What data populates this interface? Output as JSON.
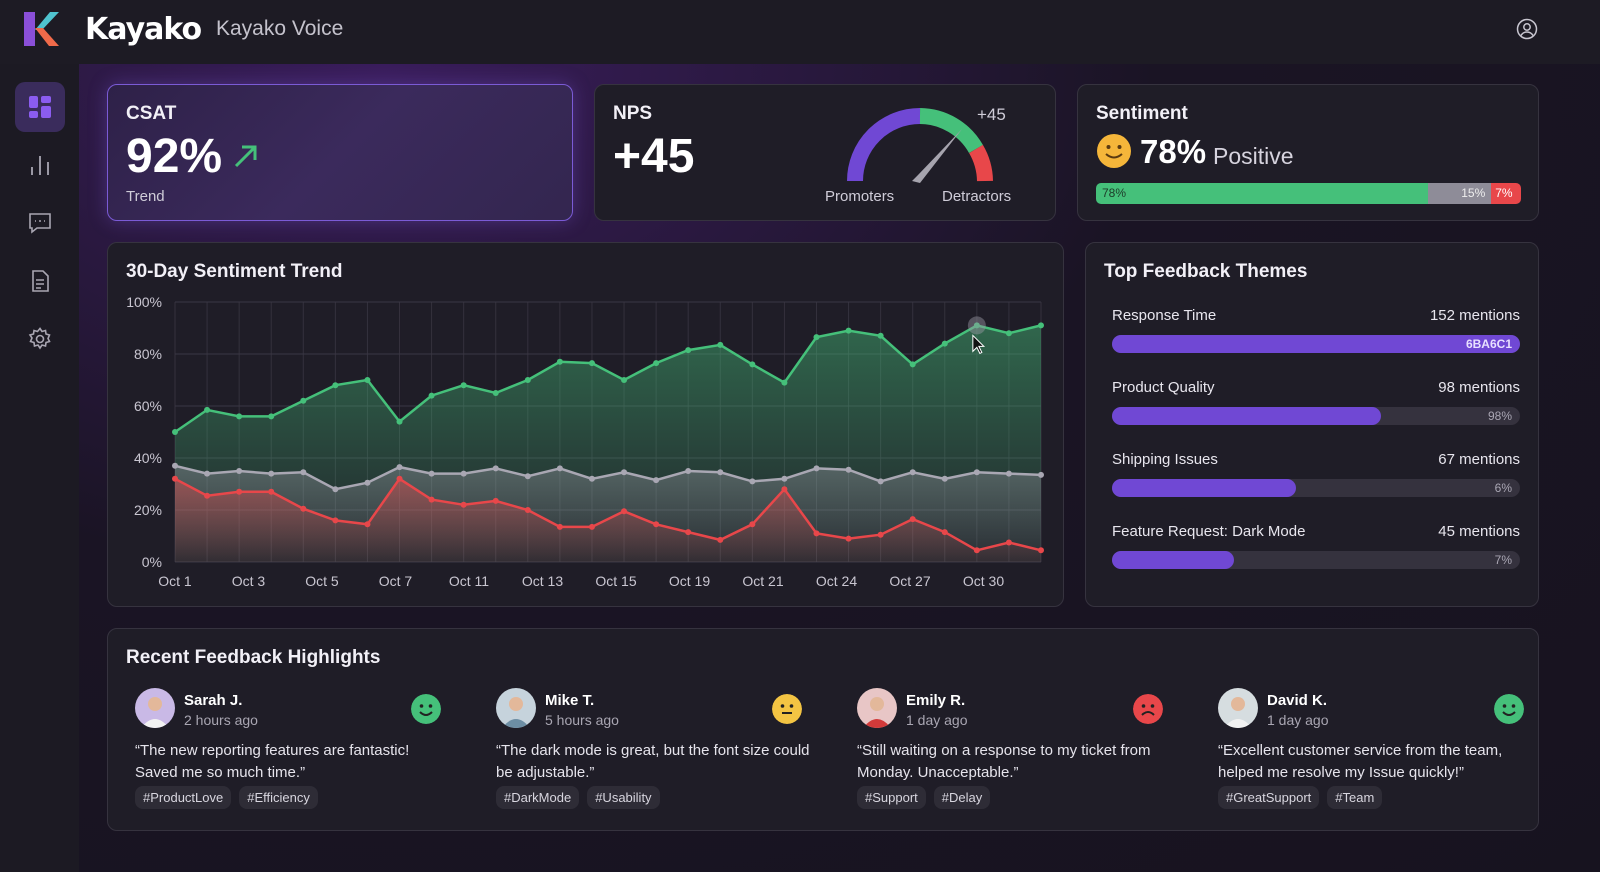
{
  "header": {
    "brand": "Kayako",
    "product": "Kayako Voice"
  },
  "sidebar": {
    "items": [
      {
        "icon": "dashboard-icon",
        "active": true
      },
      {
        "icon": "bar-chart-icon"
      },
      {
        "icon": "chat-icon"
      },
      {
        "icon": "document-icon"
      },
      {
        "icon": "gear-icon"
      }
    ]
  },
  "csat": {
    "title": "CSAT",
    "value": "92%",
    "trend_label": "Trend"
  },
  "nps": {
    "title": "NPS",
    "value": "+45",
    "gauge_value": "+45",
    "promoters_label": "Promoters",
    "detractors_label": "Detractors"
  },
  "sentiment": {
    "title": "Sentiment",
    "value": "78%",
    "label": "Positive",
    "positive": 78,
    "neutral": 15,
    "negative": 7,
    "positive_label": "78%",
    "neutral_label": "15%",
    "negative_label": "7%"
  },
  "colors": {
    "accent": "#7048d4",
    "positive": "#45c07a",
    "neutral": "#9a98a4",
    "negative": "#e8474a"
  },
  "chart_data": {
    "type": "area",
    "title": "30-Day Sentiment Trend",
    "ylim": [
      0,
      100
    ],
    "y_ticks": [
      "100%",
      "80%",
      "60%",
      "40%",
      "20%",
      "0%"
    ],
    "x_ticks": [
      "Oct 1",
      "Oct 3",
      "Oct 5",
      "Oct 7",
      "Oct 11",
      "Oct 13",
      "Oct 15",
      "Oct 19",
      "Oct 21",
      "Oct 24",
      "Oct 27",
      "Oct 30"
    ],
    "series": [
      {
        "name": "Positive",
        "color": "#45c07a",
        "values": [
          50,
          58.5,
          56,
          56,
          62,
          68,
          70,
          54,
          64,
          68,
          65,
          70,
          77,
          76.5,
          70,
          76.5,
          81.5,
          83.5,
          76,
          69,
          86.5,
          89,
          87,
          76,
          84,
          91,
          88,
          91
        ]
      },
      {
        "name": "Neutral",
        "color": "#a9a7b3",
        "values": [
          37,
          34,
          35,
          34,
          34.5,
          28,
          30.5,
          36.5,
          34,
          34,
          36,
          33,
          36,
          32,
          34.5,
          31.5,
          35,
          34.5,
          31,
          32,
          36,
          35.5,
          31,
          34.5,
          32,
          34.5,
          34,
          33.5
        ]
      },
      {
        "name": "Negative",
        "color": "#e8474a",
        "values": [
          32,
          25.5,
          27,
          27,
          20.5,
          16,
          14.5,
          32,
          24,
          22,
          23.5,
          20,
          13.5,
          13.5,
          19.5,
          14.5,
          11.5,
          8.5,
          14.5,
          28,
          11,
          9,
          10.5,
          16.5,
          11.5,
          4.5,
          7.5,
          4.5
        ]
      }
    ]
  },
  "themes": {
    "title": "Top Feedback Themes",
    "items": [
      {
        "label": "Response Time",
        "count": "152 mentions",
        "fill": 100,
        "bar_text": "6BA6C1"
      },
      {
        "label": "Product Quality",
        "count": "98 mentions",
        "fill": 66,
        "bar_text": "98%"
      },
      {
        "label": "Shipping Issues",
        "count": "67 mentions",
        "fill": 45,
        "bar_text": "6%"
      },
      {
        "label": "Feature Request: Dark Mode",
        "count": "45 mentions",
        "fill": 30,
        "bar_text": "7%"
      }
    ]
  },
  "feedback": {
    "title": "Recent Feedback Highlights",
    "items": [
      {
        "name": "Sarah J.",
        "time": "2 hours ago",
        "mood": "happy",
        "quote": "“The new reporting features are fantastic! Saved me so much time.”",
        "tags": [
          "#ProductLove",
          "#Efficiency"
        ]
      },
      {
        "name": "Mike T.",
        "time": "5 hours ago",
        "mood": "neutral",
        "quote": "“The dark mode is great, but the font size could be adjustable.”",
        "tags": [
          "#DarkMode",
          "#Usability"
        ]
      },
      {
        "name": "Emily R.",
        "time": "1 day ago",
        "mood": "sad",
        "quote": "“Still waiting on a response to my ticket from Monday. Unacceptable.”",
        "tags": [
          "#Support",
          "#Delay"
        ]
      },
      {
        "name": "David K.",
        "time": "1 day ago",
        "mood": "happy",
        "quote": "“Excellent customer service from the team, helped me resolve my Issue quickly!”",
        "tags": [
          "#GreatSupport",
          "#Team"
        ]
      }
    ]
  }
}
